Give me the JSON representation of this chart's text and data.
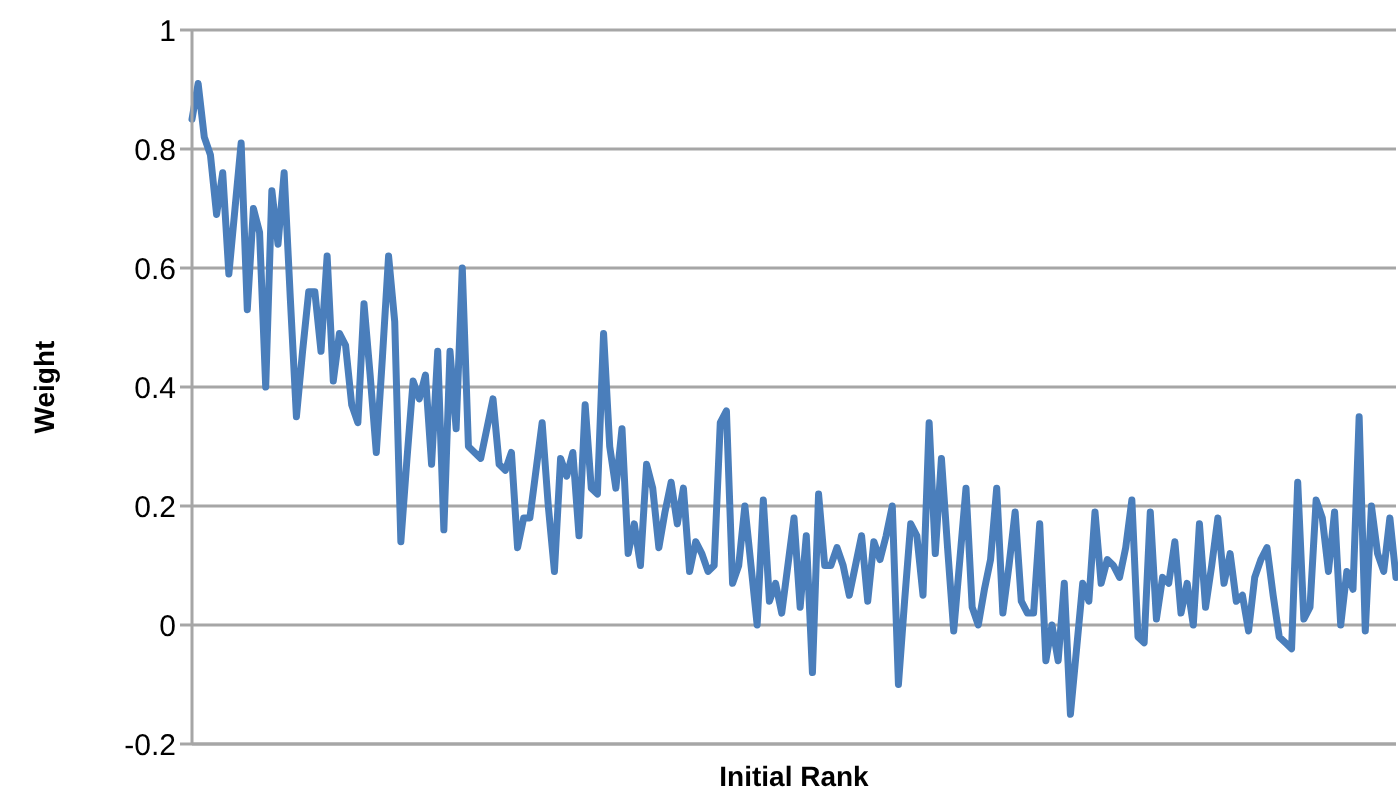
{
  "chart_data": {
    "type": "line",
    "xlabel": "Initial Rank",
    "ylabel": "Weight",
    "categories": [
      null,
      null,
      null,
      null,
      null,
      null,
      null,
      null,
      null,
      null,
      null,
      null,
      null,
      null,
      null,
      null,
      null,
      null,
      null,
      null,
      null,
      null,
      null,
      null,
      null,
      null,
      null,
      null,
      null,
      null,
      null,
      null,
      null,
      null,
      null,
      null,
      null,
      null,
      null,
      null,
      null,
      null,
      null,
      null,
      null,
      null,
      null,
      null,
      null,
      null,
      null,
      null,
      null,
      null,
      null,
      null,
      null,
      null,
      null,
      null,
      null,
      null,
      null,
      null,
      null,
      null,
      null,
      null,
      null,
      null,
      null,
      null,
      null,
      null,
      null,
      null,
      null,
      null,
      null,
      null,
      null,
      null,
      null,
      null,
      null,
      null,
      null,
      null,
      null,
      null,
      null,
      null,
      null,
      null,
      null,
      null,
      null,
      null,
      null,
      null,
      null,
      null,
      null,
      null,
      null,
      null,
      null,
      null,
      null,
      null,
      null,
      null,
      null,
      null,
      null,
      null,
      null,
      null,
      null,
      null,
      null,
      null,
      null,
      null,
      null,
      null,
      null,
      null,
      null,
      null,
      null,
      null,
      null,
      null,
      null,
      null,
      null,
      null,
      null,
      null,
      null,
      null,
      null,
      null,
      null,
      null,
      null,
      null,
      null,
      null,
      null,
      null,
      null,
      null,
      null,
      null,
      null,
      null,
      null,
      null,
      null,
      null,
      null,
      null,
      null,
      null,
      null,
      null,
      null,
      null,
      null,
      null,
      null,
      null,
      null,
      null,
      null,
      null,
      null,
      null,
      null,
      null,
      null,
      null,
      null,
      null,
      null,
      null,
      null,
      null,
      null,
      null,
      null,
      null,
      null,
      null,
      null
    ],
    "values": [
      0.85,
      0.91,
      0.82,
      0.79,
      0.69,
      0.76,
      0.59,
      0.7,
      0.81,
      0.53,
      0.7,
      0.66,
      0.4,
      0.73,
      0.64,
      0.76,
      0.55,
      0.35,
      0.46,
      0.56,
      0.56,
      0.46,
      0.62,
      0.41,
      0.49,
      0.47,
      0.37,
      0.34,
      0.54,
      0.42,
      0.29,
      0.45,
      0.62,
      0.51,
      0.14,
      0.28,
      0.41,
      0.38,
      0.42,
      0.27,
      0.46,
      0.16,
      0.46,
      0.33,
      0.6,
      0.3,
      0.29,
      0.28,
      0.33,
      0.38,
      0.27,
      0.26,
      0.29,
      0.13,
      0.18,
      0.18,
      0.26,
      0.34,
      0.2,
      0.09,
      0.28,
      0.25,
      0.29,
      0.15,
      0.37,
      0.23,
      0.22,
      0.49,
      0.3,
      0.23,
      0.33,
      0.12,
      0.17,
      0.1,
      0.27,
      0.23,
      0.13,
      0.19,
      0.24,
      0.17,
      0.23,
      0.09,
      0.14,
      0.12,
      0.09,
      0.1,
      0.34,
      0.36,
      0.07,
      0.1,
      0.2,
      0.1,
      0.0,
      0.21,
      0.04,
      0.07,
      0.02,
      0.1,
      0.18,
      0.03,
      0.15,
      -0.08,
      0.22,
      0.1,
      0.1,
      0.13,
      0.1,
      0.05,
      0.1,
      0.15,
      0.04,
      0.14,
      0.11,
      0.15,
      0.2,
      -0.1,
      0.04,
      0.17,
      0.15,
      0.05,
      0.34,
      0.12,
      0.28,
      0.13,
      -0.01,
      0.11,
      0.23,
      0.03,
      0.0,
      0.06,
      0.11,
      0.23,
      0.02,
      0.1,
      0.19,
      0.04,
      0.02,
      0.02,
      0.17,
      -0.06,
      0.0,
      -0.06,
      0.07,
      -0.15,
      -0.04,
      0.07,
      0.04,
      0.19,
      0.07,
      0.11,
      0.1,
      0.08,
      0.13,
      0.21,
      -0.02,
      -0.03,
      0.19,
      0.01,
      0.08,
      0.07,
      0.14,
      0.02,
      0.07,
      0.0,
      0.17,
      0.03,
      0.1,
      0.18,
      0.07,
      0.12,
      0.04,
      0.05,
      -0.01,
      0.08,
      0.11,
      0.13,
      0.05,
      -0.02,
      -0.03,
      -0.04,
      0.24,
      0.01,
      0.03,
      0.21,
      0.18,
      0.09,
      0.19,
      0.0,
      0.09,
      0.06,
      0.35,
      -0.01,
      0.2,
      0.12,
      0.09,
      0.18,
      0.08
    ],
    "color": "#4a7ebb",
    "ylim": [
      -0.2,
      1
    ],
    "yticks": [
      -0.2,
      0,
      0.2,
      0.4,
      0.6,
      0.8,
      1
    ],
    "grid": "y"
  }
}
